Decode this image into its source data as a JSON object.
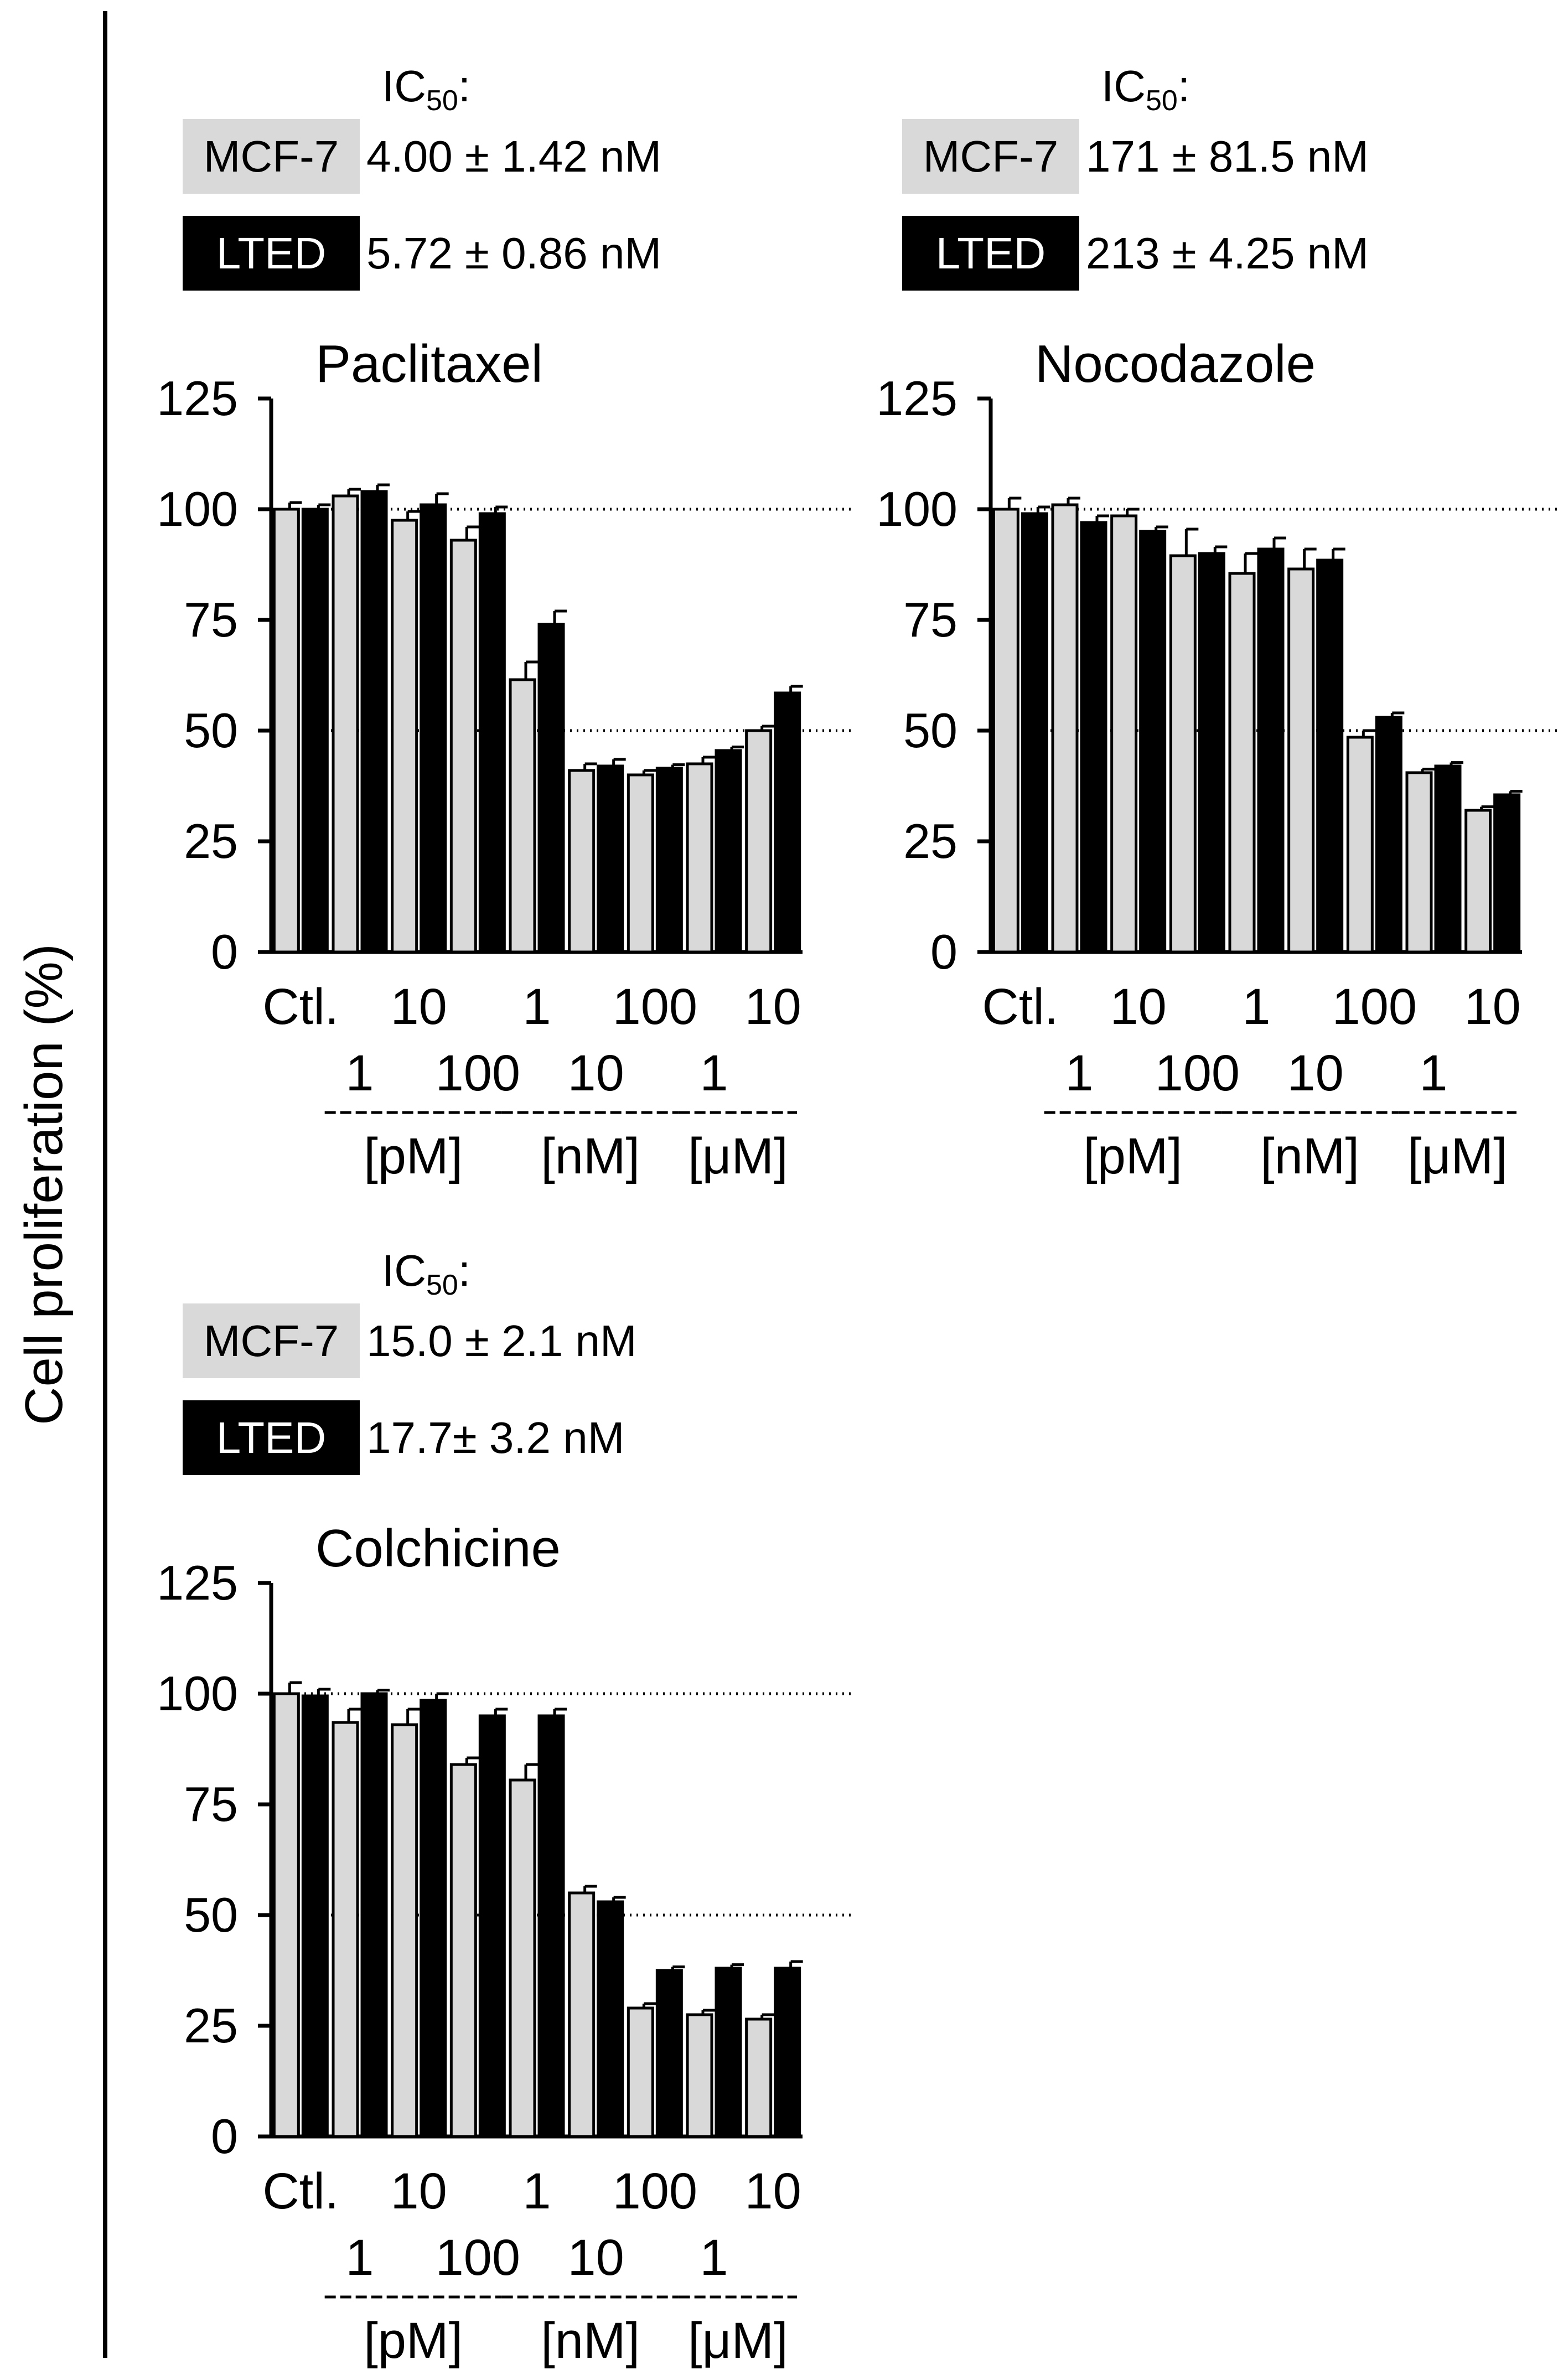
{
  "y_axis_title": "Cell proliferation (%)",
  "colors": {
    "mcf7": "#d9d9d9",
    "lted": "#000000",
    "axis": "#000000"
  },
  "ic50_label": "IC",
  "ic50_sub": "50",
  "ic50_suffix": ":",
  "chart_data": [
    {
      "type": "bar",
      "title": "Paclitaxel",
      "ic50": {
        "mcf7_label": "MCF-7",
        "mcf7_value": "4.00 ± 1.42 nM",
        "lted_label": "LTED",
        "lted_value": "5.72 ± 0.86 nM"
      },
      "ylim": [
        0,
        125
      ],
      "yticks": [
        0,
        25,
        50,
        75,
        100,
        125
      ],
      "reference_lines": [
        50,
        100
      ],
      "categories": [
        "Ctl.",
        "1",
        "10",
        "100",
        "1",
        "10",
        "100",
        "1",
        "10"
      ],
      "tick_labels_upper": [
        "Ctl.",
        "",
        "10",
        "",
        "1",
        "",
        "100",
        "",
        "10"
      ],
      "tick_labels_lower": [
        "",
        "1",
        "",
        "100",
        "",
        "10",
        "",
        "1",
        ""
      ],
      "unit_groups": [
        {
          "label": "[pM]",
          "from": 1,
          "to": 3
        },
        {
          "label": "[nM]",
          "from": 4,
          "to": 6
        },
        {
          "label": "[μM]",
          "from": 7,
          "to": 8
        }
      ],
      "series": [
        {
          "name": "MCF-7",
          "values": [
            100,
            103,
            97.5,
            93,
            61.5,
            41,
            40,
            42.5,
            50
          ],
          "errors": [
            1.5,
            1.5,
            2,
            3,
            4,
            1.5,
            1,
            1.5,
            1
          ]
        },
        {
          "name": "LTED",
          "values": [
            100,
            104,
            101,
            99,
            74,
            42,
            41.5,
            45.5,
            58.5
          ],
          "errors": [
            1,
            1.5,
            2.5,
            1.5,
            3,
            1.5,
            0.8,
            0.8,
            1.5
          ]
        }
      ]
    },
    {
      "type": "bar",
      "title": "Nocodazole",
      "ic50": {
        "mcf7_label": "MCF-7",
        "mcf7_value": "171 ± 81.5 nM",
        "lted_label": "LTED",
        "lted_value": "213 ± 4.25 nM"
      },
      "ylim": [
        0,
        125
      ],
      "yticks": [
        0,
        25,
        50,
        75,
        100,
        125
      ],
      "reference_lines": [
        50,
        100
      ],
      "categories": [
        "Ctl.",
        "1",
        "10",
        "100",
        "1",
        "10",
        "100",
        "1",
        "10"
      ],
      "tick_labels_upper": [
        "Ctl.",
        "",
        "10",
        "",
        "1",
        "",
        "100",
        "",
        "10"
      ],
      "tick_labels_lower": [
        "",
        "1",
        "",
        "100",
        "",
        "10",
        "",
        "1",
        ""
      ],
      "unit_groups": [
        {
          "label": "[pM]",
          "from": 1,
          "to": 3
        },
        {
          "label": "[nM]",
          "from": 4,
          "to": 6
        },
        {
          "label": "[μM]",
          "from": 7,
          "to": 8
        }
      ],
      "series": [
        {
          "name": "MCF-7",
          "values": [
            100,
            101,
            98.5,
            89.5,
            85.5,
            86.5,
            48.5,
            40.5,
            32
          ],
          "errors": [
            2.5,
            1.5,
            1.5,
            6,
            4.5,
            4.5,
            1.5,
            0.8,
            0.8
          ]
        },
        {
          "name": "LTED",
          "values": [
            99,
            97,
            95,
            90,
            91,
            88.5,
            53,
            42,
            35.5
          ],
          "errors": [
            1.5,
            1.5,
            1,
            1.5,
            2.5,
            2.5,
            1,
            0.8,
            0.8
          ]
        }
      ]
    },
    {
      "type": "bar",
      "title": "Colchicine",
      "ic50": {
        "mcf7_label": "MCF-7",
        "mcf7_value": "15.0 ± 2.1 nM",
        "lted_label": "LTED",
        "lted_value": "17.7± 3.2 nM"
      },
      "ylim": [
        0,
        125
      ],
      "yticks": [
        0,
        25,
        50,
        75,
        100,
        125
      ],
      "reference_lines": [
        50,
        100
      ],
      "categories": [
        "Ctl.",
        "1",
        "10",
        "100",
        "1",
        "10",
        "100",
        "1",
        "10"
      ],
      "tick_labels_upper": [
        "Ctl.",
        "",
        "10",
        "",
        "1",
        "",
        "100",
        "",
        "10"
      ],
      "tick_labels_lower": [
        "",
        "1",
        "",
        "100",
        "",
        "10",
        "",
        "1",
        ""
      ],
      "unit_groups": [
        {
          "label": "[pM]",
          "from": 1,
          "to": 3
        },
        {
          "label": "[nM]",
          "from": 4,
          "to": 6
        },
        {
          "label": "[μM]",
          "from": 7,
          "to": 8
        }
      ],
      "series": [
        {
          "name": "MCF-7",
          "values": [
            100,
            93.5,
            93,
            84,
            80.5,
            55,
            29,
            27.5,
            26.5
          ],
          "errors": [
            2.5,
            3,
            3.5,
            1.5,
            3.5,
            1.5,
            1,
            1,
            1
          ]
        },
        {
          "name": "LTED",
          "values": [
            99.5,
            100,
            98.5,
            95,
            95,
            53,
            37.5,
            38,
            38
          ],
          "errors": [
            1.5,
            0.8,
            1.5,
            1.5,
            1.5,
            1,
            0.8,
            0.8,
            1.5
          ]
        }
      ]
    }
  ]
}
